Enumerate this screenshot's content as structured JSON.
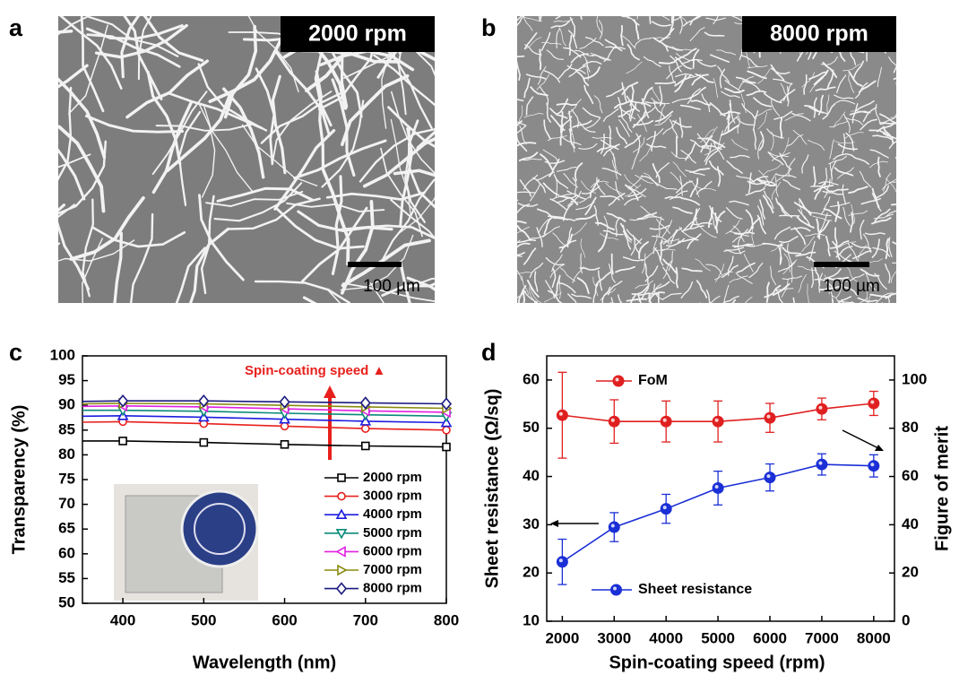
{
  "panels": [
    {
      "letter": "a",
      "label": "2000 rpm",
      "scale_bar": "100 µm"
    },
    {
      "letter": "b",
      "label": "8000 rpm",
      "scale_bar": "100 µm"
    }
  ],
  "chart_data": [
    {
      "panel": "c",
      "type": "line",
      "x_label": "Wavelength (nm)",
      "y_label": "Transparency (%)",
      "annotation": "Spin-coating speed ▲",
      "x": [
        350,
        400,
        500,
        600,
        700,
        800
      ],
      "xlim": [
        350,
        800
      ],
      "xticks": [
        400,
        500,
        600,
        700,
        800
      ],
      "ylim": [
        50,
        100
      ],
      "yticks": [
        50,
        55,
        60,
        65,
        70,
        75,
        80,
        85,
        90,
        95,
        100
      ],
      "series": [
        {
          "name": "2000 rpm",
          "color": "#000000",
          "marker": "square",
          "values": [
            82.8,
            82.8,
            82.5,
            82.1,
            81.8,
            81.6
          ]
        },
        {
          "name": "3000 rpm",
          "color": "#e8201c",
          "marker": "circle",
          "values": [
            86.6,
            86.7,
            86.3,
            85.8,
            85.3,
            85.0
          ]
        },
        {
          "name": "4000 rpm",
          "color": "#1c1ce0",
          "marker": "triangle-up",
          "values": [
            87.8,
            87.9,
            87.6,
            87.2,
            86.8,
            86.5
          ]
        },
        {
          "name": "5000 rpm",
          "color": "#0a8a7a",
          "marker": "triangle-down",
          "values": [
            89.0,
            89.0,
            88.8,
            88.4,
            88.1,
            87.8
          ]
        },
        {
          "name": "6000 rpm",
          "color": "#e020e0",
          "marker": "triangle-left",
          "values": [
            89.8,
            89.9,
            89.7,
            89.3,
            88.9,
            88.6
          ]
        },
        {
          "name": "7000 rpm",
          "color": "#8a8a10",
          "marker": "triangle-right",
          "values": [
            90.3,
            90.4,
            90.3,
            90.0,
            89.7,
            89.4
          ]
        },
        {
          "name": "8000 rpm",
          "color": "#1a1a80",
          "marker": "diamond",
          "values": [
            90.8,
            90.9,
            90.9,
            90.7,
            90.5,
            90.3
          ]
        }
      ]
    },
    {
      "panel": "d",
      "type": "line",
      "x_label": "Spin-coating speed (rpm)",
      "y_label": "Sheet resistance (Ω/sq)",
      "y2_label": "Figure of merit",
      "x": [
        2000,
        3000,
        4000,
        5000,
        6000,
        7000,
        8000
      ],
      "xlim": [
        1700,
        8400
      ],
      "xticks": [
        2000,
        3000,
        4000,
        5000,
        6000,
        7000,
        8000
      ],
      "ylim": [
        10,
        65
      ],
      "yticks": [
        10,
        20,
        30,
        40,
        50,
        60
      ],
      "y2lim": [
        0,
        110
      ],
      "y2ticks": [
        0,
        20,
        40,
        60,
        80,
        100
      ],
      "series": [
        {
          "name": "FoM",
          "color": "#e02020",
          "axis": "y2",
          "marker": "ball",
          "values": [
            85.4,
            82.8,
            82.8,
            82.8,
            84.3,
            88.0,
            90.3
          ],
          "errors": [
            17.8,
            9,
            8.5,
            8.5,
            6,
            4.5,
            5
          ]
        },
        {
          "name": "Sheet resistance",
          "color": "#1a2fd6",
          "marker": "ball",
          "values": [
            22.3,
            29.5,
            33.3,
            37.6,
            39.8,
            42.5,
            42.2
          ],
          "errors": [
            4.7,
            3,
            3,
            3.5,
            2.8,
            2.2,
            2.3
          ]
        }
      ]
    }
  ]
}
